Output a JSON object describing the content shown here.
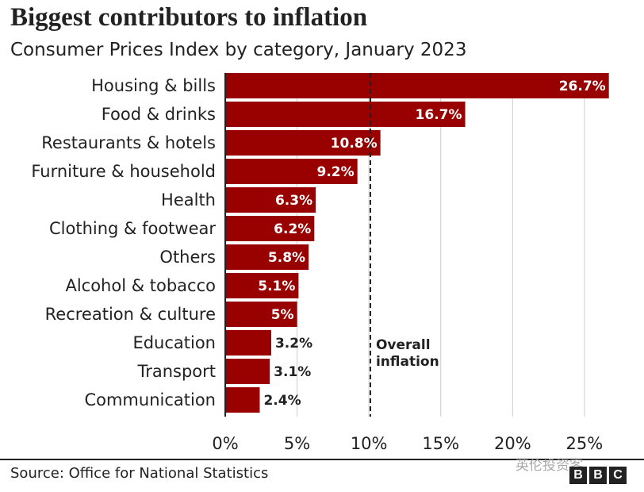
{
  "chart_data": {
    "type": "bar",
    "orientation": "horizontal",
    "title": "Biggest contributors to inflation",
    "subtitle": "Consumer Prices Index by category, January 2023",
    "categories": [
      "Housing & bills",
      "Food & drinks",
      "Restaurants & hotels",
      "Furniture & household",
      "Health",
      "Clothing & footwear",
      "Others",
      "Alcohol & tobacco",
      "Recreation & culture",
      "Education",
      "Transport",
      "Communication"
    ],
    "values": [
      26.7,
      16.7,
      10.8,
      9.2,
      6.3,
      6.2,
      5.8,
      5.1,
      5,
      3.2,
      3.1,
      2.4
    ],
    "value_labels": [
      "26.7%",
      "16.7%",
      "10.8%",
      "9.2%",
      "6.3%",
      "6.2%",
      "5.8%",
      "5.1%",
      "5%",
      "3.2%",
      "3.1%",
      "2.4%"
    ],
    "xlim": [
      0,
      27.6
    ],
    "xticks": [
      0,
      5,
      10,
      15,
      20,
      25
    ],
    "xtick_labels": [
      "0%",
      "5%",
      "10%",
      "15%",
      "20%",
      "25%"
    ],
    "grid": true,
    "reference_line": {
      "value": 10.1,
      "label_lines": [
        "Overall",
        "inflation"
      ]
    },
    "colors": {
      "bar": "#990000",
      "grid": "#cccccc",
      "text": "#222222",
      "label_inside": "#ffffff"
    }
  },
  "source": "Source: Office for National Statistics",
  "watermark": "英伦投资客",
  "logo_letters": [
    "B",
    "B",
    "C"
  ]
}
